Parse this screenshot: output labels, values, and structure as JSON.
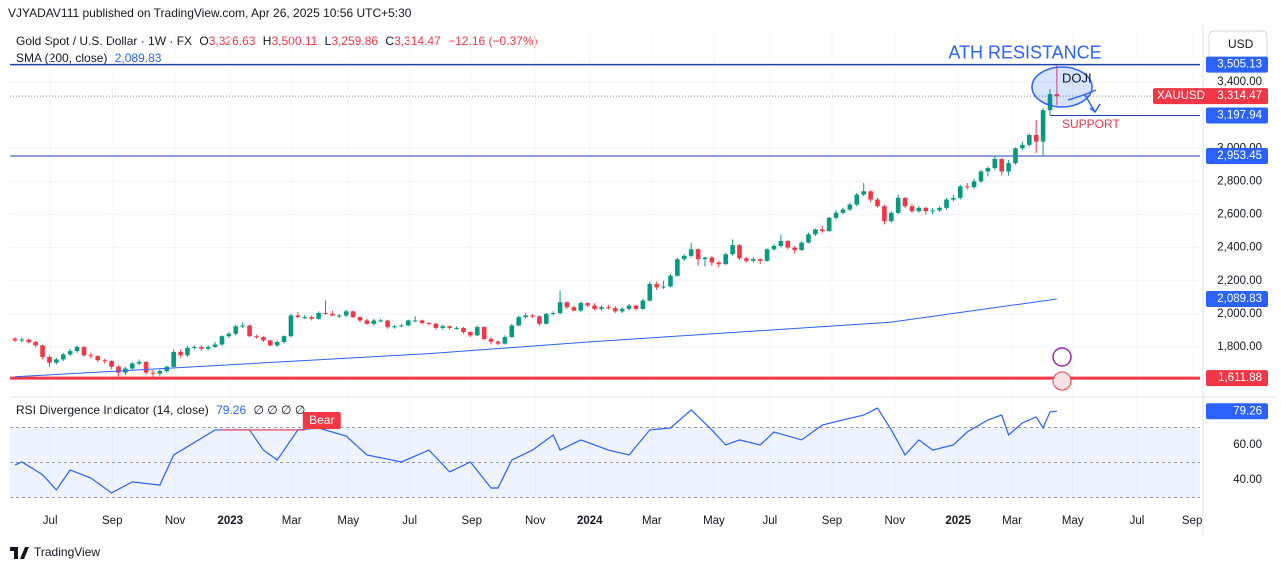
{
  "header": {
    "published": "VJYADAV111 published on TradingView.com, Apr 26, 2025 10:56 UTC+5:30",
    "symbol": "Gold Spot / U.S. Dollar · 1W · FX",
    "open_key": "O",
    "open": "3,326.63",
    "high_key": "H",
    "high": "3,500.11",
    "low_key": "L",
    "low": "3,259.86",
    "close_key": "C",
    "close": "3,314.47",
    "change": "−12.16 (−0.37%)",
    "currency": "USD"
  },
  "footer": "TradingView",
  "chart_data": [
    {
      "type": "candlestick",
      "up_color": "#089981",
      "down_color": "#f23645",
      "candles": [
        [
          1850,
          1860,
          1830,
          1840
        ],
        [
          1840,
          1858,
          1828,
          1845
        ],
        [
          1845,
          1850,
          1820,
          1830
        ],
        [
          1830,
          1835,
          1798,
          1810
        ],
        [
          1810,
          1815,
          1725,
          1740
        ],
        [
          1740,
          1750,
          1680,
          1705
        ],
        [
          1705,
          1735,
          1695,
          1725
        ],
        [
          1725,
          1765,
          1715,
          1755
        ],
        [
          1755,
          1790,
          1745,
          1775
        ],
        [
          1775,
          1810,
          1765,
          1800
        ],
        [
          1800,
          1805,
          1740,
          1750
        ],
        [
          1750,
          1765,
          1730,
          1745
        ],
        [
          1745,
          1750,
          1710,
          1720
        ],
        [
          1720,
          1730,
          1700,
          1715
        ],
        [
          1715,
          1720,
          1665,
          1680
        ],
        [
          1680,
          1690,
          1622,
          1645
        ],
        [
          1645,
          1680,
          1630,
          1670
        ],
        [
          1670,
          1710,
          1660,
          1700
        ],
        [
          1700,
          1725,
          1690,
          1710
        ],
        [
          1710,
          1715,
          1635,
          1645
        ],
        [
          1645,
          1660,
          1620,
          1640
        ],
        [
          1640,
          1665,
          1625,
          1655
        ],
        [
          1655,
          1690,
          1645,
          1680
        ],
        [
          1680,
          1785,
          1670,
          1770
        ],
        [
          1770,
          1785,
          1735,
          1750
        ],
        [
          1750,
          1805,
          1740,
          1795
        ],
        [
          1795,
          1810,
          1785,
          1800
        ],
        [
          1800,
          1810,
          1775,
          1790
        ],
        [
          1790,
          1810,
          1780,
          1800
        ],
        [
          1800,
          1830,
          1795,
          1815
        ],
        [
          1815,
          1870,
          1805,
          1865
        ],
        [
          1865,
          1890,
          1855,
          1880
        ],
        [
          1880,
          1935,
          1870,
          1925
        ],
        [
          1925,
          1950,
          1915,
          1930
        ],
        [
          1930,
          1935,
          1860,
          1865
        ],
        [
          1865,
          1875,
          1850,
          1860
        ],
        [
          1860,
          1865,
          1830,
          1840
        ],
        [
          1840,
          1845,
          1805,
          1810
        ],
        [
          1810,
          1840,
          1800,
          1830
        ],
        [
          1830,
          1870,
          1820,
          1865
        ],
        [
          1865,
          2000,
          1860,
          1990
        ],
        [
          1990,
          2010,
          1975,
          1980
        ],
        [
          1980,
          1995,
          1970,
          1980
        ],
        [
          1980,
          1990,
          1960,
          1970
        ],
        [
          1970,
          2015,
          1965,
          2005
        ],
        [
          2005,
          2080,
          1995,
          2000
        ],
        [
          2000,
          2020,
          1985,
          1990
        ],
        [
          1990,
          2000,
          1975,
          1990
        ],
        [
          1990,
          2025,
          1980,
          2015
        ],
        [
          2015,
          2020,
          1975,
          1980
        ],
        [
          1980,
          1985,
          1950,
          1960
        ],
        [
          1960,
          1970,
          1935,
          1940
        ],
        [
          1940,
          1970,
          1930,
          1960
        ],
        [
          1960,
          1970,
          1950,
          1960
        ],
        [
          1960,
          1965,
          1910,
          1920
        ],
        [
          1920,
          1935,
          1910,
          1925
        ],
        [
          1925,
          1940,
          1920,
          1930
        ],
        [
          1930,
          1965,
          1925,
          1960
        ],
        [
          1960,
          1985,
          1950,
          1960
        ],
        [
          1960,
          1965,
          1935,
          1945
        ],
        [
          1945,
          1950,
          1930,
          1940
        ],
        [
          1940,
          1945,
          1905,
          1915
        ],
        [
          1915,
          1935,
          1905,
          1925
        ],
        [
          1925,
          1930,
          1905,
          1915
        ],
        [
          1915,
          1925,
          1905,
          1915
        ],
        [
          1915,
          1920,
          1880,
          1890
        ],
        [
          1890,
          1895,
          1860,
          1870
        ],
        [
          1870,
          1930,
          1865,
          1920
        ],
        [
          1920,
          1925,
          1840,
          1848
        ],
        [
          1848,
          1860,
          1815,
          1832
        ],
        [
          1832,
          1840,
          1810,
          1820
        ],
        [
          1820,
          1870,
          1815,
          1860
        ],
        [
          1860,
          1940,
          1855,
          1930
        ],
        [
          1930,
          1990,
          1925,
          1980
        ],
        [
          1980,
          2005,
          1970,
          1990
        ],
        [
          1990,
          2000,
          1975,
          1985
        ],
        [
          1985,
          1990,
          1930,
          1940
        ],
        [
          1940,
          2005,
          1935,
          2000
        ],
        [
          2000,
          2015,
          1990,
          2005
        ],
        [
          2005,
          2140,
          1995,
          2070
        ],
        [
          2070,
          2075,
          2030,
          2040
        ],
        [
          2040,
          2050,
          2015,
          2020
        ],
        [
          2020,
          2075,
          2010,
          2065
        ],
        [
          2065,
          2070,
          2040,
          2050
        ],
        [
          2050,
          2065,
          2020,
          2030
        ],
        [
          2030,
          2050,
          2020,
          2040
        ],
        [
          2040,
          2055,
          2025,
          2035
        ],
        [
          2035,
          2045,
          2005,
          2015
        ],
        [
          2015,
          2040,
          2005,
          2030
        ],
        [
          2030,
          2060,
          2020,
          2050
        ],
        [
          2050,
          2055,
          2020,
          2030
        ],
        [
          2030,
          2090,
          2025,
          2080
        ],
        [
          2080,
          2195,
          2075,
          2180
        ],
        [
          2180,
          2195,
          2145,
          2160
        ],
        [
          2160,
          2200,
          2150,
          2165
        ],
        [
          2165,
          2240,
          2160,
          2230
        ],
        [
          2230,
          2340,
          2225,
          2330
        ],
        [
          2330,
          2360,
          2320,
          2350
        ],
        [
          2350,
          2430,
          2340,
          2390
        ],
        [
          2390,
          2395,
          2290,
          2330
        ],
        [
          2330,
          2345,
          2285,
          2340
        ],
        [
          2340,
          2350,
          2290,
          2310
        ],
        [
          2310,
          2320,
          2280,
          2300
        ],
        [
          2300,
          2370,
          2295,
          2360
        ],
        [
          2360,
          2450,
          2350,
          2415
        ],
        [
          2415,
          2420,
          2325,
          2335
        ],
        [
          2335,
          2345,
          2310,
          2320
        ],
        [
          2320,
          2345,
          2310,
          2330
        ],
        [
          2330,
          2335,
          2300,
          2320
        ],
        [
          2320,
          2395,
          2315,
          2390
        ],
        [
          2390,
          2420,
          2380,
          2410
        ],
        [
          2410,
          2480,
          2400,
          2440
        ],
        [
          2440,
          2445,
          2390,
          2400
        ],
        [
          2400,
          2410,
          2365,
          2385
        ],
        [
          2385,
          2440,
          2380,
          2430
        ],
        [
          2430,
          2490,
          2425,
          2480
        ],
        [
          2480,
          2515,
          2470,
          2510
        ],
        [
          2510,
          2530,
          2490,
          2500
        ],
        [
          2500,
          2585,
          2495,
          2580
        ],
        [
          2580,
          2625,
          2570,
          2610
        ],
        [
          2610,
          2640,
          2600,
          2630
        ],
        [
          2630,
          2670,
          2620,
          2660
        ],
        [
          2660,
          2730,
          2650,
          2720
        ],
        [
          2720,
          2790,
          2710,
          2740
        ],
        [
          2740,
          2745,
          2675,
          2690
        ],
        [
          2690,
          2700,
          2640,
          2650
        ],
        [
          2650,
          2660,
          2540,
          2560
        ],
        [
          2560,
          2620,
          2550,
          2610
        ],
        [
          2610,
          2720,
          2600,
          2700
        ],
        [
          2700,
          2705,
          2640,
          2650
        ],
        [
          2650,
          2665,
          2610,
          2620
        ],
        [
          2620,
          2650,
          2610,
          2640
        ],
        [
          2640,
          2645,
          2600,
          2620
        ],
        [
          2620,
          2640,
          2600,
          2625
        ],
        [
          2625,
          2650,
          2615,
          2640
        ],
        [
          2640,
          2700,
          2630,
          2690
        ],
        [
          2690,
          2720,
          2680,
          2700
        ],
        [
          2700,
          2780,
          2690,
          2770
        ],
        [
          2770,
          2790,
          2750,
          2765
        ],
        [
          2765,
          2815,
          2755,
          2800
        ],
        [
          2800,
          2870,
          2790,
          2860
        ],
        [
          2860,
          2890,
          2830,
          2880
        ],
        [
          2880,
          2955,
          2870,
          2935
        ],
        [
          2935,
          2940,
          2835,
          2860
        ],
        [
          2860,
          2930,
          2835,
          2910
        ],
        [
          2910,
          3005,
          2900,
          3000
        ],
        [
          3000,
          3040,
          2990,
          3020
        ],
        [
          3020,
          3090,
          3010,
          3080
        ],
        [
          3080,
          3170,
          2970,
          3040
        ],
        [
          3040,
          3245,
          2956,
          3230
        ],
        [
          3230,
          3358,
          3200,
          3326.63
        ],
        [
          3326.63,
          3500.11,
          3259.86,
          3314.47
        ]
      ],
      "sma": {
        "name": "SMA (200, close)",
        "color": "#2962ff",
        "value_label": "2,089.83",
        "x": [
          0,
          30,
          60,
          83,
          127,
          151
        ],
        "values": [
          1620,
          1690,
          1760,
          1830,
          1950,
          2089.83
        ]
      },
      "last_price": {
        "name": "XAUUSD",
        "value": 3314.47,
        "label": "3,314.47"
      },
      "levels": [
        {
          "value": 3505.13,
          "label": "3,505.13",
          "color": "#1e40af"
        },
        {
          "value": 3197.94,
          "label": "3,197.94",
          "color": "#1e40af"
        },
        {
          "value": 2953.45,
          "label": "2,953.45",
          "color": "#1e40af"
        },
        {
          "value": 1611.88,
          "label": "1,611.88",
          "color": "#f23645"
        }
      ],
      "annotations": {
        "resistance": "ATH RESISTANCE",
        "doji": "DOJI",
        "support": "SUPPORT"
      },
      "xlim": [
        -0.72,
        171.74
      ],
      "ylim": [
        1510,
        3714
      ],
      "yticks": [
        {
          "value": 1800,
          "label": "1,800.00"
        },
        {
          "value": 2000,
          "label": "2,000.00"
        },
        {
          "value": 2200,
          "label": "2,200.00"
        },
        {
          "value": 2400,
          "label": "2,400.00"
        },
        {
          "value": 2600,
          "label": "2,600.00"
        },
        {
          "value": 2800,
          "label": "2,800.00"
        },
        {
          "value": 3000,
          "label": "3,000.00"
        },
        {
          "value": 3400,
          "label": "3,400.00"
        }
      ],
      "xticks": [
        {
          "value": 5.1,
          "label": "Jul"
        },
        {
          "value": 14.1,
          "label": "Sep"
        },
        {
          "value": 23.2,
          "label": "Nov"
        },
        {
          "value": 31.2,
          "label": "2023"
        },
        {
          "value": 40.1,
          "label": "Mar"
        },
        {
          "value": 48.3,
          "label": "May"
        },
        {
          "value": 57.2,
          "label": "Jul"
        },
        {
          "value": 66.2,
          "label": "Sep"
        },
        {
          "value": 75.4,
          "label": "Nov"
        },
        {
          "value": 83.3,
          "label": "2024"
        },
        {
          "value": 92.3,
          "label": "Mar"
        },
        {
          "value": 101.3,
          "label": "May"
        },
        {
          "value": 109.4,
          "label": "Jul"
        },
        {
          "value": 118.4,
          "label": "Sep"
        },
        {
          "value": 127.5,
          "label": "Nov"
        },
        {
          "value": 136.7,
          "label": "2025"
        },
        {
          "value": 144.5,
          "label": "Mar"
        },
        {
          "value": 153.3,
          "label": "May"
        },
        {
          "value": 162.6,
          "label": "Jul"
        },
        {
          "value": 170.6,
          "label": "Sep"
        }
      ]
    },
    {
      "type": "line",
      "name": "RSI Divergence Indicator (14, close)",
      "value_label": "79.26",
      "flags": "∅ ∅ ∅ ∅",
      "divergence": "Bear",
      "color": "#2962ff",
      "x": [
        0,
        1,
        4,
        6,
        8,
        11,
        14,
        17,
        21,
        23,
        29,
        34,
        36,
        38,
        41,
        44,
        48,
        51,
        56,
        60,
        63,
        66,
        69,
        70,
        72,
        75,
        78,
        79,
        82,
        86,
        89,
        92,
        95,
        98,
        101,
        103,
        105,
        108,
        110,
        114,
        117,
        120,
        123,
        125,
        127,
        129,
        131,
        133,
        136,
        138,
        141,
        143,
        144,
        146,
        148,
        149,
        150,
        151
      ],
      "values": [
        48.6,
        50.3,
        43,
        34.3,
        45.7,
        41.1,
        32.6,
        38.9,
        37.1,
        54.3,
        68.6,
        68.6,
        57.1,
        51.4,
        68.6,
        69.7,
        65.1,
        54.3,
        50.3,
        57.1,
        44.6,
        50.3,
        35.4,
        35.4,
        51.4,
        57.1,
        65.7,
        57.1,
        62.9,
        57.1,
        54.3,
        68.6,
        69.7,
        80,
        68.6,
        60,
        62.9,
        60,
        67.4,
        62.9,
        71.4,
        74.3,
        77.1,
        81.1,
        68.6,
        54.3,
        62.9,
        57.1,
        60,
        67.4,
        74.3,
        77.1,
        65.7,
        72.6,
        76,
        69.7,
        78.9,
        79.26
      ],
      "band": [
        30,
        70
      ],
      "midline": 50,
      "xlim": [
        -0.72,
        171.74
      ],
      "ylim": [
        25.7,
        85.7
      ],
      "yticks": [
        {
          "value": 60,
          "label": "60.00"
        },
        {
          "value": 40,
          "label": "40.00"
        }
      ]
    }
  ]
}
